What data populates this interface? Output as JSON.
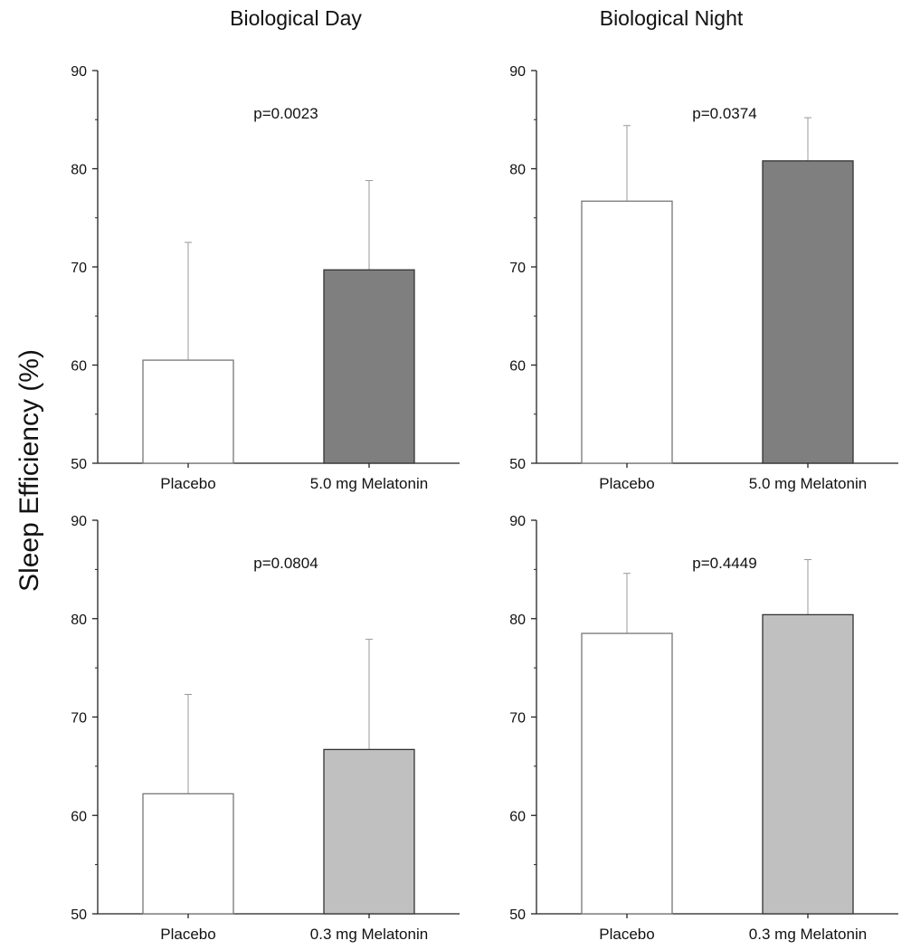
{
  "figure": {
    "column_titles": [
      "Biological Day",
      "Biological Night"
    ],
    "ylabel": "Sleep Efficiency  (%)"
  },
  "chart_data": [
    {
      "type": "bar",
      "panel": "top-left",
      "column": "Biological Day",
      "categories": [
        "Placebo",
        "5.0 mg Melatonin"
      ],
      "values": [
        60.5,
        69.7
      ],
      "errors": [
        12.0,
        9.1
      ],
      "colors": [
        "#ffffff",
        "#7f7f7f"
      ],
      "annotation": "p=0.0023",
      "ylim": [
        50,
        90
      ],
      "yticks": [
        "50",
        "60",
        "70",
        "80",
        "90"
      ]
    },
    {
      "type": "bar",
      "panel": "top-right",
      "column": "Biological Night",
      "categories": [
        "Placebo",
        "5.0 mg Melatonin"
      ],
      "values": [
        76.7,
        80.8
      ],
      "errors": [
        7.7,
        4.4
      ],
      "colors": [
        "#ffffff",
        "#7f7f7f"
      ],
      "annotation": "p=0.0374",
      "ylim": [
        50,
        90
      ],
      "yticks": [
        "50",
        "60",
        "70",
        "80",
        "90"
      ]
    },
    {
      "type": "bar",
      "panel": "bottom-left",
      "column": "Biological Day",
      "categories": [
        "Placebo",
        "0.3 mg Melatonin"
      ],
      "values": [
        62.2,
        66.7
      ],
      "errors": [
        10.1,
        11.2
      ],
      "colors": [
        "#ffffff",
        "#c0c0c0"
      ],
      "annotation": "p=0.0804",
      "ylim": [
        50,
        90
      ],
      "yticks": [
        "50",
        "60",
        "70",
        "80",
        "90"
      ]
    },
    {
      "type": "bar",
      "panel": "bottom-right",
      "column": "Biological Night",
      "categories": [
        "Placebo",
        "0.3 mg Melatonin"
      ],
      "values": [
        78.5,
        80.4
      ],
      "errors": [
        6.1,
        5.6
      ],
      "colors": [
        "#ffffff",
        "#c0c0c0"
      ],
      "annotation": "p=0.4449",
      "ylim": [
        50,
        90
      ],
      "yticks": [
        "50",
        "60",
        "70",
        "80",
        "90"
      ]
    }
  ]
}
